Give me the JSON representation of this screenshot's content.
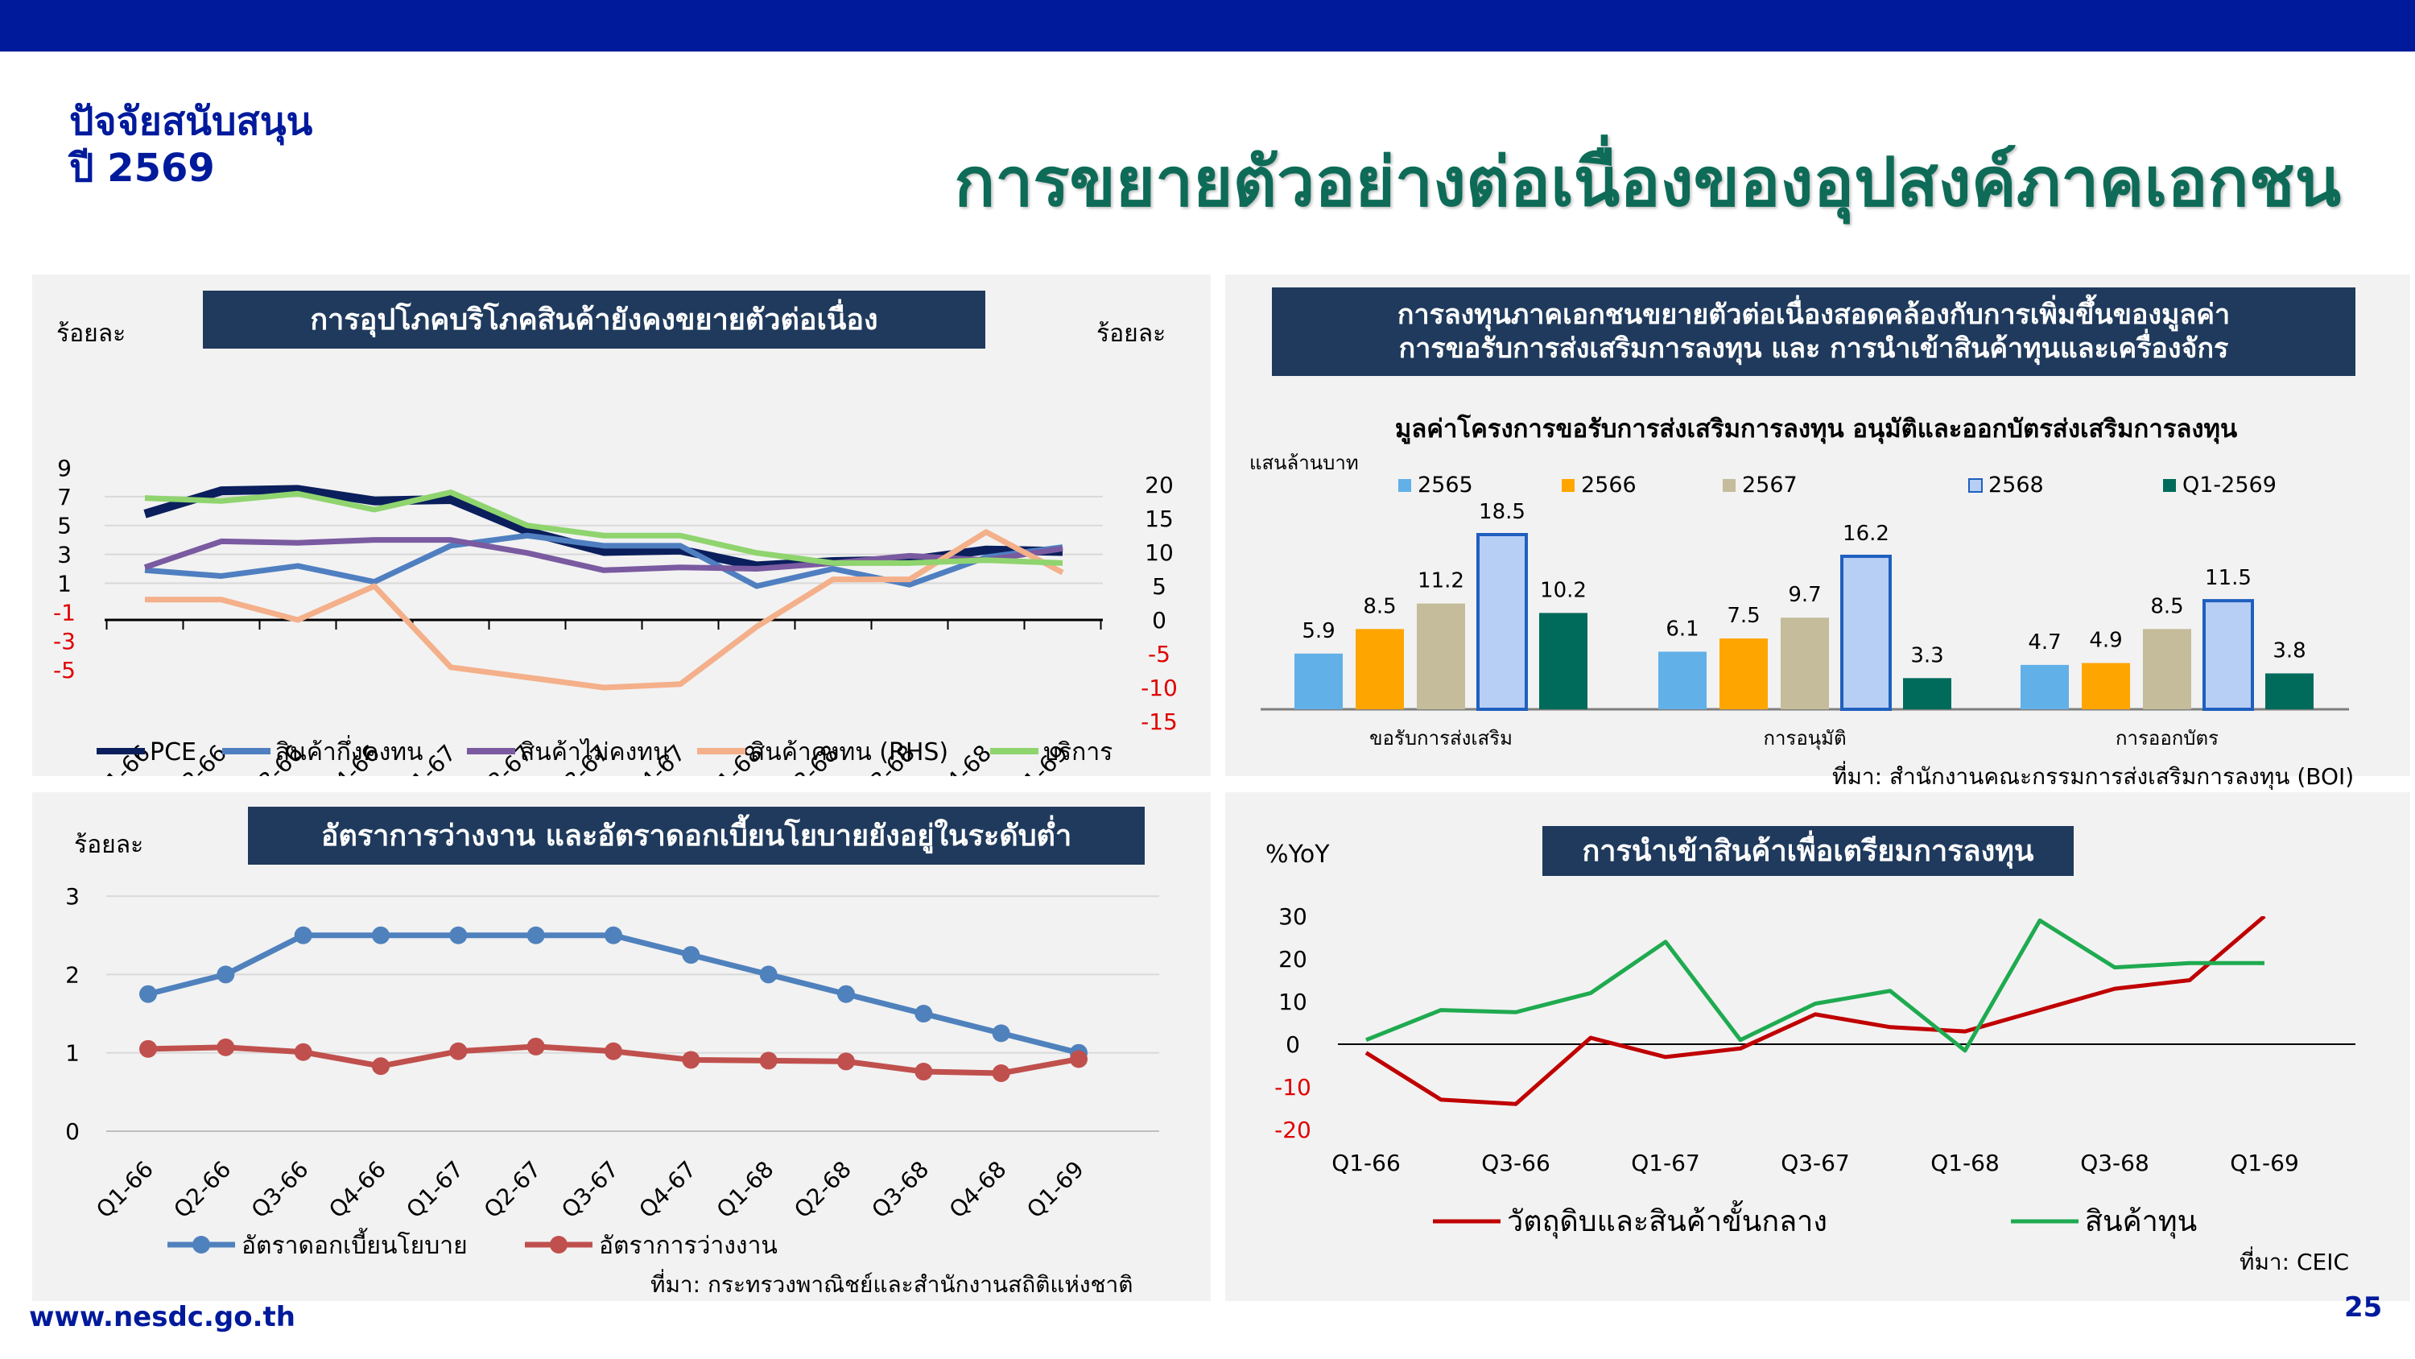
{
  "header": {
    "subtitle_line1": "ปัจจัยสนับสนุน",
    "subtitle_line2": "ปี 2569",
    "title": "การขยายตัวอย่างต่อเนื่องของอุปสงค์ภาคเอกชน"
  },
  "footer": {
    "url": "www.nesdc.go.th",
    "page": "25"
  },
  "colors": {
    "brand_blue": "#001a9c",
    "title_green": "#0d6b57",
    "banner_bg": "#1f3a5c",
    "negative_red": "#e00000"
  },
  "panel1": {
    "banner": "การอุปโภคบริโภคสินค้ายังคงขยายตัวต่อเนื่อง",
    "left_unit": "ร้อยละ",
    "right_unit": "ร้อยละ"
  },
  "panel2": {
    "banner_line1": "การลงทุนภาคเอกชนขยายตัวต่อเนื่องสอดคล้องกับการเพิ่มขึ้นของมูลค่า",
    "banner_line2": "การขอรับการส่งเสริมการลงทุน และ การนำเข้าสินค้าทุนและเครื่องจักร",
    "unit": "แสนล้านบาท",
    "source": "ที่มา: สำนักงานคณะกรรมการส่งเสริมการลงทุน  (BOI)"
  },
  "panel3": {
    "banner": "อัตราการว่างงาน และอัตราดอกเบี้ยนโยบายยังอยู่ในระดับต่ำ",
    "unit": "ร้อยละ",
    "source": "ที่มา: กระทรวงพาณิชย์และสำนักงานสถิติแห่งชาติ"
  },
  "panel4": {
    "banner": "การนำเข้าสินค้าเพื่อเตรียมการลงทุน",
    "unit": "%YoY",
    "source": "ที่มา: CEIC"
  },
  "chart_data": [
    {
      "type": "line",
      "categories": [
        "Q1-66",
        "Q2-66",
        "Q3-66",
        "Q4-66",
        "Q1-67",
        "Q2-67",
        "Q3-67",
        "Q4-67",
        "Q1-68",
        "Q2-68",
        "Q3-68",
        "Q4-68",
        "Q1-69"
      ],
      "ylim_left": [
        -5,
        9
      ],
      "yticks_left": [
        "9",
        "7",
        "5",
        "3",
        "1",
        "-1",
        "-3",
        "-5"
      ],
      "ylim_right": [
        -15,
        20
      ],
      "yticks_right": [
        "20",
        "15",
        "10",
        "5",
        "0",
        "-5",
        "-10",
        "-15"
      ],
      "series": [
        {
          "name": "PCE",
          "axis": "left",
          "color": "#0a1f5c",
          "values": [
            5.8,
            7.4,
            7.5,
            6.7,
            6.8,
            4.6,
            3.2,
            3.3,
            2.2,
            2.5,
            2.6,
            3.3,
            3.2
          ]
        },
        {
          "name": "สินค้ากึ่งคงทน",
          "axis": "left",
          "color": "#4f7fc0",
          "values": [
            1.9,
            1.5,
            2.2,
            1.1,
            3.6,
            4.3,
            3.6,
            3.6,
            0.8,
            2.0,
            0.9,
            2.8,
            3.5
          ]
        },
        {
          "name": "สินค้าไม่คงทน",
          "axis": "left",
          "color": "#7a5aa0",
          "values": [
            2.1,
            3.9,
            3.8,
            4.0,
            4.0,
            3.1,
            1.9,
            2.1,
            2.0,
            2.4,
            2.9,
            2.6,
            3.4
          ]
        },
        {
          "name": "สินค้าคงทน (RHS)",
          "axis": "right",
          "color": "#f4b08a",
          "values": [
            3.0,
            3.0,
            0.0,
            5.0,
            -7.0,
            -8.5,
            -10.0,
            -9.5,
            -1.0,
            6.0,
            6.0,
            13.0,
            7.0
          ]
        },
        {
          "name": "บริการ",
          "axis": "left",
          "color": "#8fd46e",
          "values": [
            6.9,
            6.7,
            7.2,
            6.1,
            7.3,
            5.0,
            4.3,
            4.3,
            3.1,
            2.4,
            2.4,
            2.6,
            2.4
          ]
        }
      ]
    },
    {
      "type": "bar",
      "title": "มูลค่าโครงการขอรับการส่งเสริมการลงทุน อนุมัติและออกบัตรส่งเสริมการลงทุน",
      "categories": [
        "ขอรับการส่งเสริม",
        "การอนุมัติ",
        "การออกบัตร"
      ],
      "ylim": [
        0,
        20
      ],
      "series": [
        {
          "name": "2565",
          "color": "#62b0e8",
          "values": [
            5.9,
            6.1,
            4.7
          ]
        },
        {
          "name": "2566",
          "color": "#ffa500",
          "values": [
            8.5,
            7.5,
            4.9
          ]
        },
        {
          "name": "2567",
          "color": "#c4bc9a",
          "values": [
            11.2,
            9.7,
            8.5
          ]
        },
        {
          "name": "2568",
          "color": "#b8cff5",
          "values": [
            18.5,
            16.2,
            11.5
          ]
        },
        {
          "name": "Q1-2569",
          "color": "#006b5b",
          "values": [
            10.2,
            3.3,
            3.8
          ]
        }
      ]
    },
    {
      "type": "line",
      "categories": [
        "Q1-66",
        "Q2-66",
        "Q3-66",
        "Q4-66",
        "Q1-67",
        "Q2-67",
        "Q3-67",
        "Q4-67",
        "Q1-68",
        "Q2-68",
        "Q3-68",
        "Q4-68",
        "Q1-69"
      ],
      "ylim": [
        0,
        3
      ],
      "yticks": [
        "3",
        "2",
        "1",
        "0"
      ],
      "series": [
        {
          "name": "อัตราดอกเบี้ยนโยบาย",
          "color": "#4f81bd",
          "values": [
            1.75,
            2.0,
            2.5,
            2.5,
            2.5,
            2.5,
            2.5,
            2.25,
            2.0,
            1.75,
            1.5,
            1.25,
            1.0
          ]
        },
        {
          "name": "อัตราการว่างงาน",
          "color": "#c0504d",
          "values": [
            1.05,
            1.07,
            1.01,
            0.83,
            1.02,
            1.08,
            1.02,
            0.91,
            0.9,
            0.89,
            0.76,
            0.74,
            0.92
          ]
        }
      ]
    },
    {
      "type": "line",
      "categories": [
        "Q1-66",
        "Q2-66",
        "Q3-66",
        "Q4-66",
        "Q1-67",
        "Q2-67",
        "Q3-67",
        "Q4-67",
        "Q1-68",
        "Q2-68",
        "Q3-68",
        "Q4-68",
        "Q1-69"
      ],
      "xtick_labels": [
        "Q1-66",
        "Q3-66",
        "Q1-67",
        "Q3-67",
        "Q1-68",
        "Q3-68",
        "Q1-69"
      ],
      "ylim": [
        -20,
        30
      ],
      "yticks": [
        "30",
        "20",
        "10",
        "0",
        "-10",
        "-20"
      ],
      "series": [
        {
          "name": "วัตถุดิบและสินค้าขั้นกลาง",
          "color": "#c00000",
          "values": [
            -2.0,
            -13.0,
            -14.0,
            1.5,
            -3.0,
            -1.0,
            7.0,
            4.0,
            3.0,
            8.0,
            13.0,
            15.0,
            30.0
          ]
        },
        {
          "name": "สินค้าทุน",
          "color": "#1faa50",
          "values": [
            1.0,
            8.0,
            7.5,
            12.0,
            24.0,
            1.0,
            9.5,
            12.5,
            -1.5,
            29.0,
            18.0,
            19.0,
            19.0
          ]
        }
      ]
    }
  ]
}
